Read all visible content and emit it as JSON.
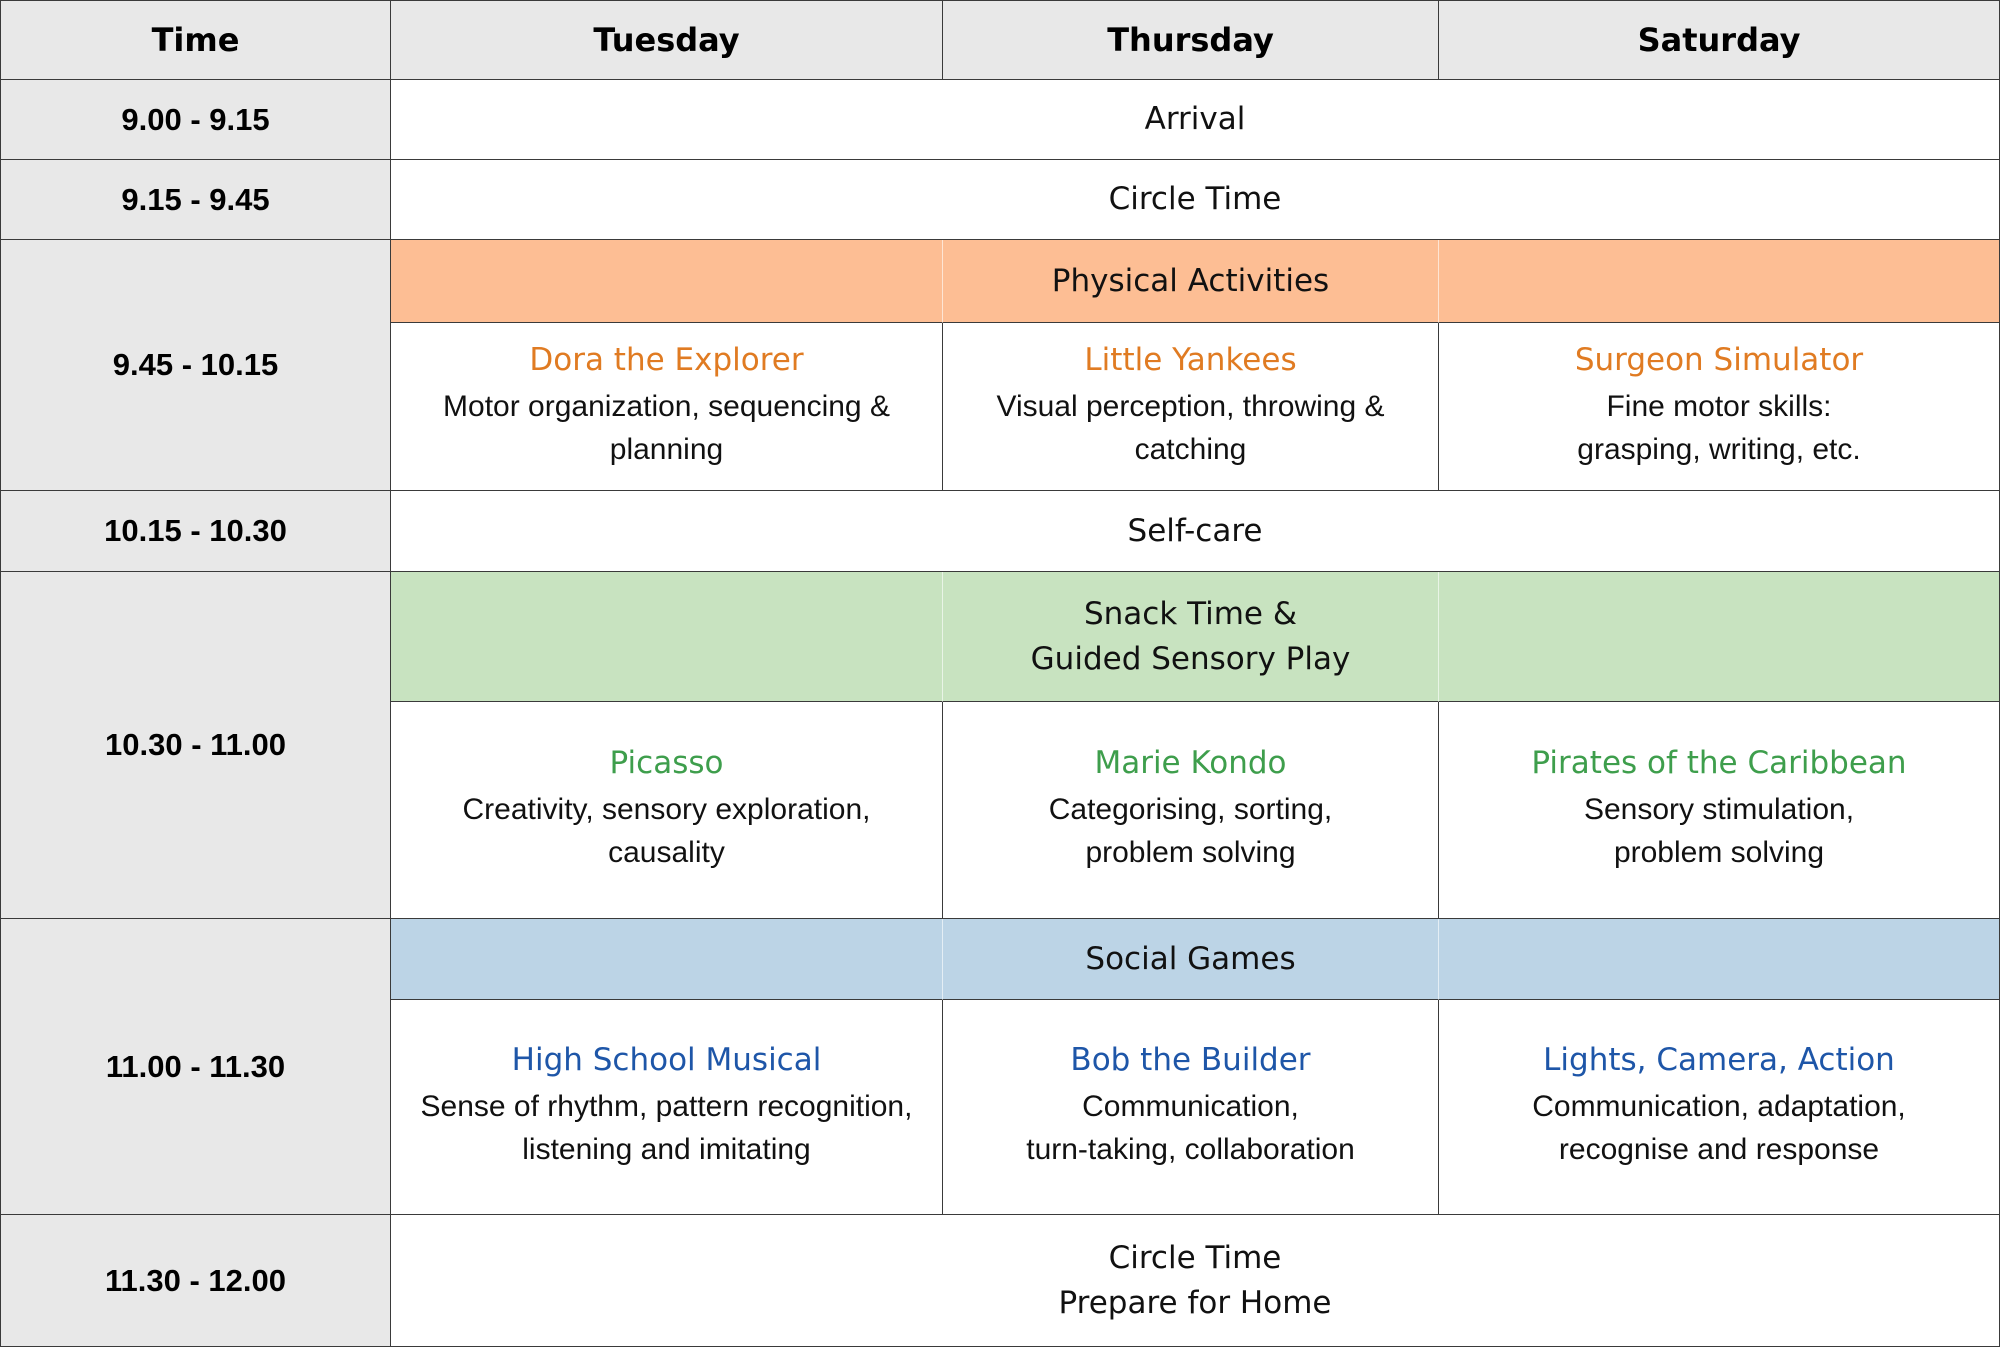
{
  "header": {
    "time": "Time",
    "day1": "Tuesday",
    "day2": "Thursday",
    "day3": "Saturday"
  },
  "times": {
    "t1": "9.00 - 9.15",
    "t2": "9.15 - 9.45",
    "t3": "9.45 - 10.15",
    "t4": "10.15 - 10.30",
    "t5": "10.30 - 11.00",
    "t6": "11.00 - 11.30",
    "t7": "11.30 - 12.00"
  },
  "common": {
    "arrival": "Arrival",
    "circle_time": "Circle Time",
    "self_care": "Self-care",
    "final_line1": "Circle Time",
    "final_line2": "Prepare for Home"
  },
  "bands": {
    "physical": {
      "label": "Physical Activities",
      "color": "#fdbe94"
    },
    "snack": {
      "line1": "Snack Time &",
      "line2": "Guided Sensory Play",
      "color": "#c8e3c0"
    },
    "social": {
      "label": "Social Games",
      "color": "#bcd4e6"
    }
  },
  "activities": {
    "physical": [
      {
        "title": "Dora the Explorer",
        "desc": "Motor organization, sequencing &\nplanning"
      },
      {
        "title": "Little Yankees",
        "desc": "Visual perception, throwing &\ncatching"
      },
      {
        "title": "Surgeon Simulator",
        "desc": "Fine motor skills:\ngrasping, writing, etc."
      }
    ],
    "sensory": [
      {
        "title": "Picasso",
        "desc": "Creativity, sensory exploration,\ncausality"
      },
      {
        "title": "Marie Kondo",
        "desc": "Categorising, sorting,\nproblem solving"
      },
      {
        "title": "Pirates of the Caribbean",
        "desc": "Sensory stimulation,\nproblem solving"
      }
    ],
    "social": [
      {
        "title": "High School Musical",
        "desc": "Sense of rhythm, pattern recognition,\nlistening and imitating"
      },
      {
        "title": "Bob the Builder",
        "desc": "Communication,\nturn-taking, collaboration"
      },
      {
        "title": "Lights, Camera, Action",
        "desc": "Communication, adaptation,\nrecognise and response"
      }
    ]
  },
  "colors": {
    "header_bg": "#e8e8e8",
    "orange": "#e07b22",
    "green": "#3e9e4c",
    "blue": "#1e56a8"
  }
}
